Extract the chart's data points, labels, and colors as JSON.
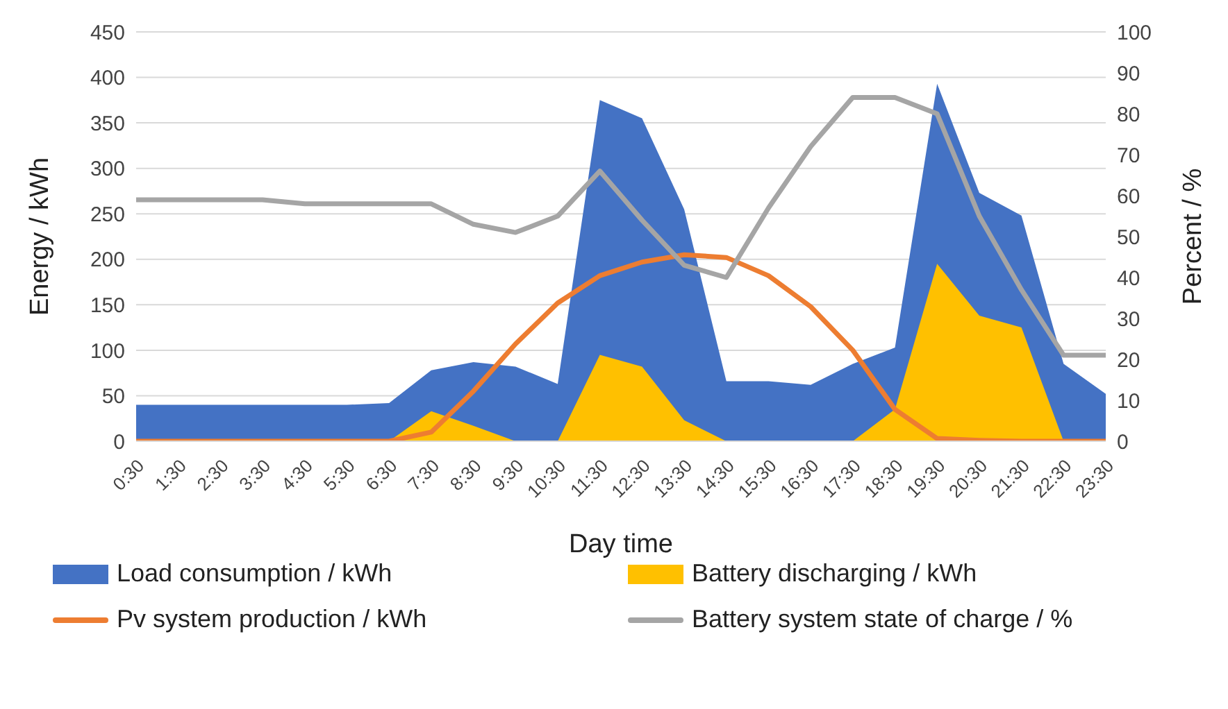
{
  "chart_data": {
    "type": "area",
    "xlabel": "Day time",
    "ylabel": "Energy / kWh",
    "y2label": "Percent / %",
    "categories": [
      "0:30",
      "1:30",
      "2:30",
      "3:30",
      "4:30",
      "5:30",
      "6:30",
      "7:30",
      "8:30",
      "9:30",
      "10:30",
      "11:30",
      "12:30",
      "13:30",
      "14:30",
      "15:30",
      "16:30",
      "17:30",
      "18:30",
      "19:30",
      "20:30",
      "21:30",
      "22:30",
      "23:30"
    ],
    "series": [
      {
        "name": "Load consumption / kWh",
        "color": "#4472c4",
        "values": [
          40,
          40,
          40,
          40,
          40,
          40,
          42,
          78,
          87,
          82,
          63,
          375,
          355,
          255,
          66,
          66,
          62,
          85,
          103,
          393,
          273,
          248,
          85,
          52
        ]
      },
      {
        "name": "Battery discharging / kWh",
        "color": "#ffc000",
        "values": [
          0,
          0,
          0,
          0,
          0,
          0,
          0,
          33,
          17,
          0,
          0,
          95,
          82,
          23,
          0,
          0,
          0,
          0,
          35,
          195,
          138,
          125,
          0,
          0
        ]
      },
      {
        "name": "Pv system production / kWh",
        "type": "line",
        "color": "#ed7d31",
        "values": [
          0,
          0,
          0,
          0,
          0,
          0,
          0,
          10,
          55,
          107,
          152,
          182,
          197,
          205,
          202,
          182,
          148,
          100,
          35,
          3,
          1,
          0,
          0,
          0
        ]
      },
      {
        "name": "Battery system state of charge / %",
        "type": "line",
        "axis": "y2",
        "color": "#a5a5a5",
        "values": [
          59,
          59,
          59,
          59,
          58,
          58,
          58,
          58,
          53,
          51,
          55,
          66,
          54,
          43,
          40,
          57,
          72,
          84,
          84,
          80,
          55,
          37,
          21,
          21
        ]
      }
    ],
    "ylim": [
      0,
      450
    ],
    "yticks": [
      0,
      50,
      100,
      150,
      200,
      250,
      300,
      350,
      400,
      450
    ],
    "y2lim": [
      0,
      100
    ],
    "y2ticks": [
      0,
      10,
      20,
      30,
      40,
      50,
      60,
      70,
      80,
      90,
      100
    ],
    "grid": "y",
    "legend": "bottom",
    "marker": "none"
  }
}
